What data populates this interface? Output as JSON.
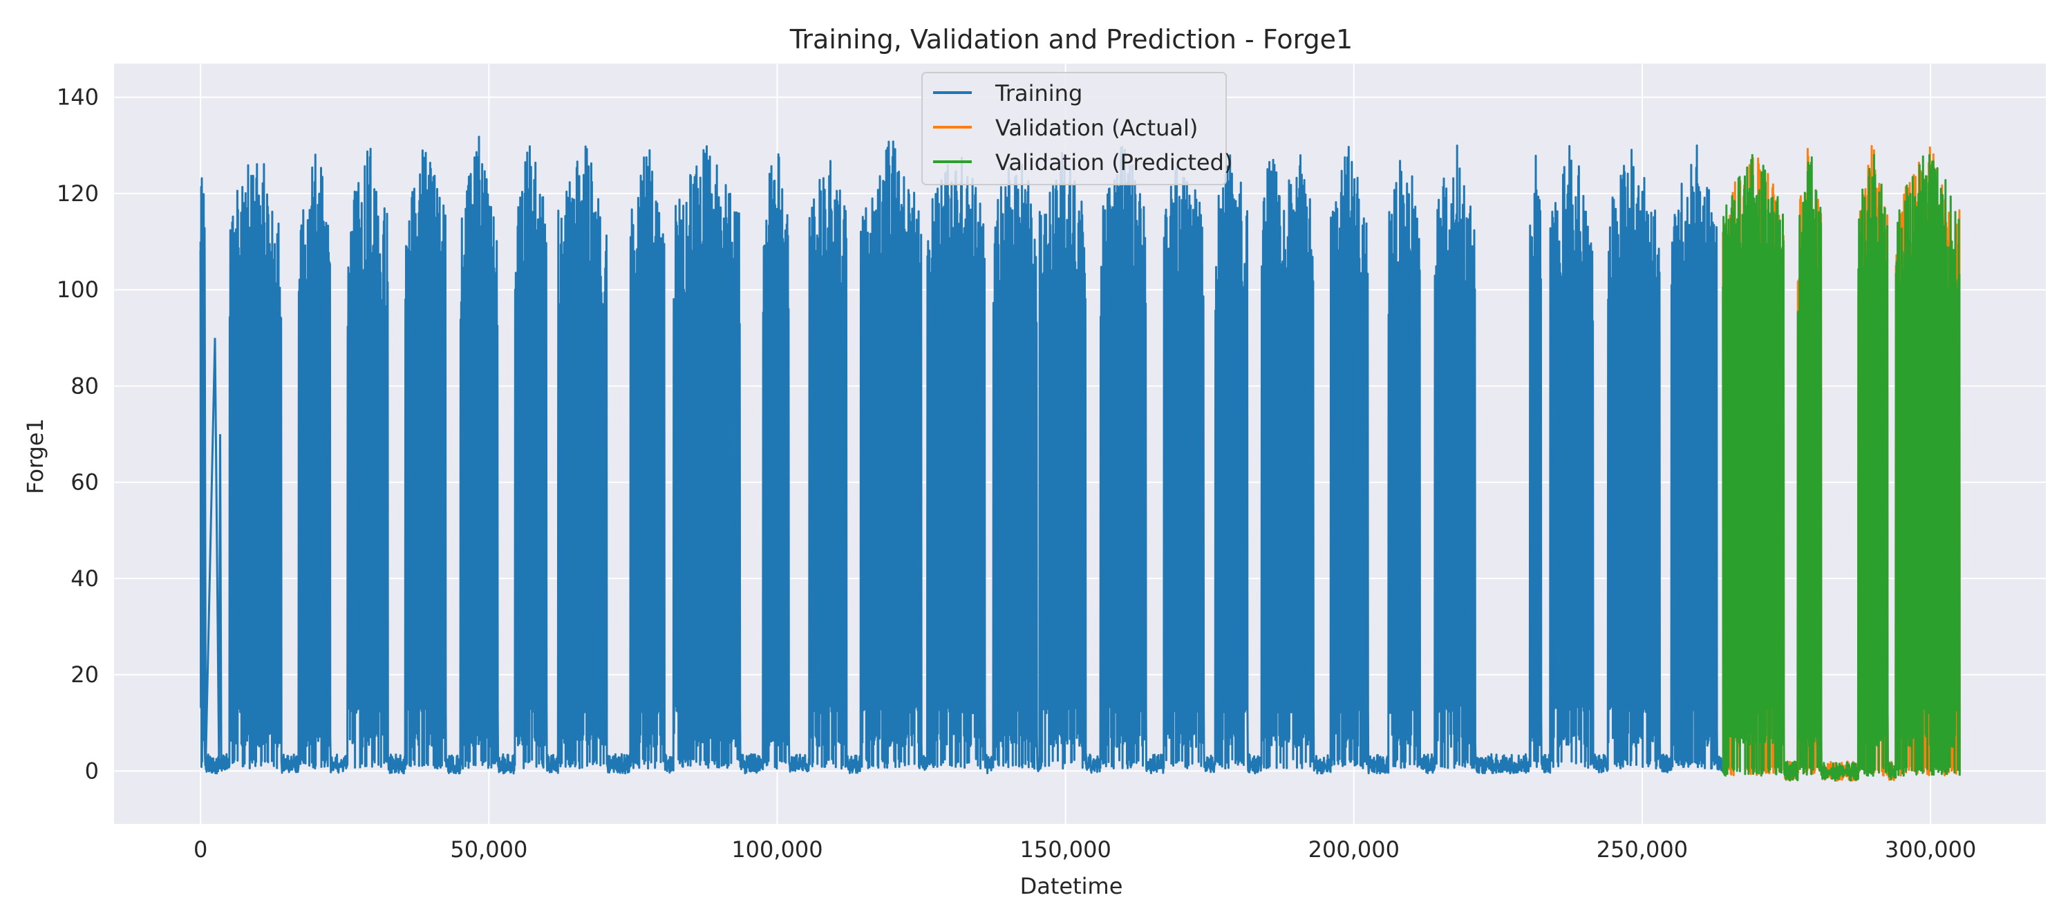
{
  "chart_data": {
    "type": "line",
    "title": "Training, Validation and Prediction - Forge1",
    "xlabel": "Datetime",
    "ylabel": "Forge1",
    "xlim": [
      -15000,
      320000
    ],
    "ylim": [
      -11,
      147
    ],
    "x_ticks": [
      0,
      50000,
      100000,
      150000,
      200000,
      250000,
      300000
    ],
    "x_tick_labels": [
      "0",
      "50,000",
      "100,000",
      "150,000",
      "200,000",
      "250,000",
      "300,000"
    ],
    "y_ticks": [
      0,
      20,
      40,
      60,
      80,
      100,
      120,
      140
    ],
    "y_tick_labels": [
      "0",
      "20",
      "40",
      "60",
      "80",
      "100",
      "120",
      "140"
    ],
    "grid": true,
    "legend_position": "top-center",
    "colors": {
      "training": "#1f77b4",
      "validation_actual": "#ff7f0e",
      "validation_predicted": "#2ca02c",
      "plot_bg": "#eaeaf2",
      "grid": "#ffffff"
    },
    "series": [
      {
        "name": "Training",
        "x_range": [
          0,
          264000
        ],
        "pattern": "dense oscillation between ~0 and ~130 during active periods, flat ~0-3 during idle gaps",
        "active_periods": [
          [
            0,
            700
          ],
          [
            5000,
            14000
          ],
          [
            17000,
            22500
          ],
          [
            25500,
            32500
          ],
          [
            35500,
            42500
          ],
          [
            45000,
            51500
          ],
          [
            54500,
            60000
          ],
          [
            62000,
            70500
          ],
          [
            74500,
            80500
          ],
          [
            82000,
            93500
          ],
          [
            97500,
            102000
          ],
          [
            105500,
            112000
          ],
          [
            114500,
            125000
          ],
          [
            126000,
            136000
          ],
          [
            137500,
            145000
          ],
          [
            145500,
            153500
          ],
          [
            156000,
            164000
          ],
          [
            167000,
            174000
          ],
          [
            176000,
            181500
          ],
          [
            184000,
            187500
          ],
          [
            187500,
            193000
          ],
          [
            196000,
            202500
          ],
          [
            206000,
            211500
          ],
          [
            214000,
            221000
          ],
          [
            230500,
            232500
          ],
          [
            234000,
            241500
          ],
          [
            244000,
            253000
          ],
          [
            255000,
            263000
          ]
        ],
        "max_value": 140
      },
      {
        "name": "Validation (Actual)",
        "x_range": [
          264000,
          305000
        ],
        "active_periods": [
          [
            264000,
            274500
          ],
          [
            277000,
            281000
          ],
          [
            287500,
            292500
          ],
          [
            294000,
            305000
          ]
        ],
        "max_value": 132
      },
      {
        "name": "Validation (Predicted)",
        "x_range": [
          264000,
          305000
        ],
        "active_periods": [
          [
            264000,
            274500
          ],
          [
            277000,
            281000
          ],
          [
            287500,
            292500
          ],
          [
            294000,
            305000
          ]
        ],
        "max_value": 128
      }
    ]
  }
}
